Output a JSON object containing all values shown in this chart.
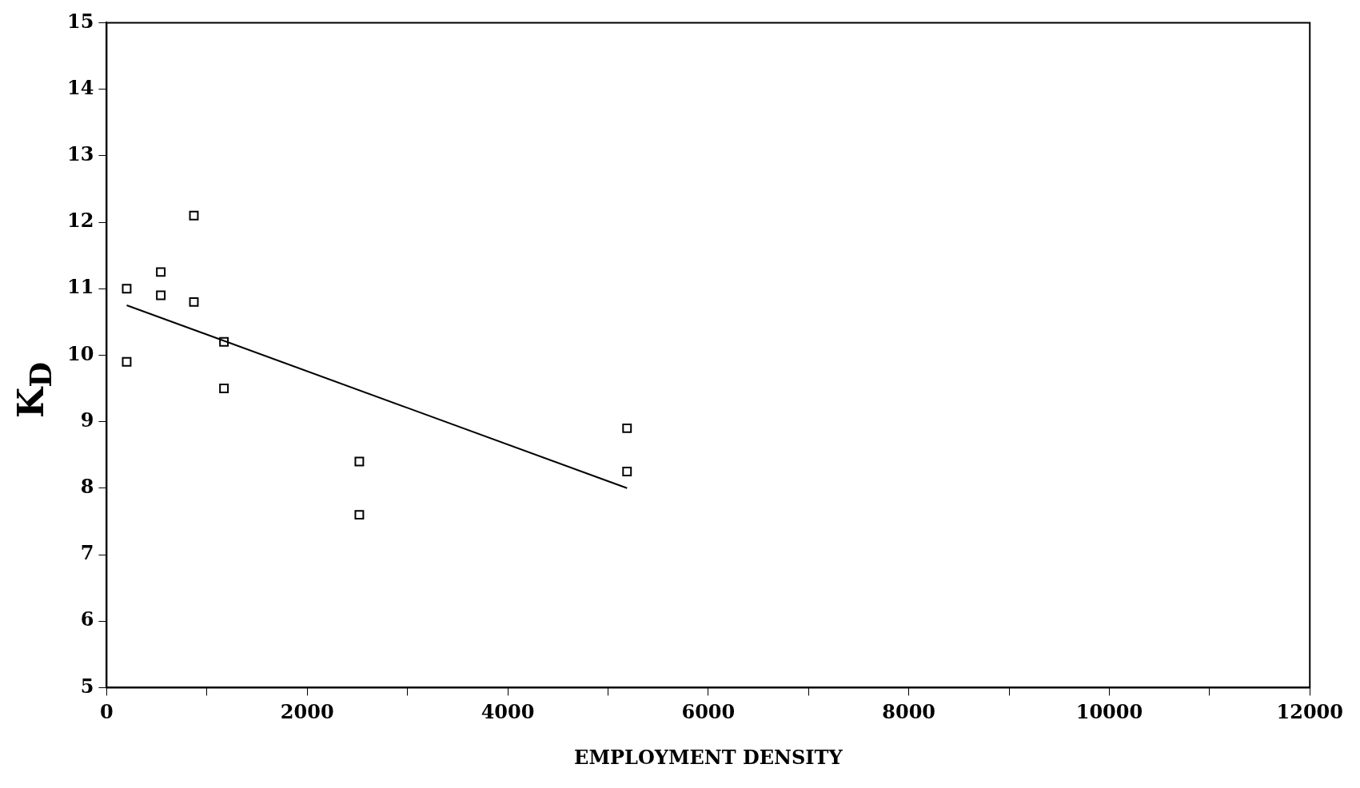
{
  "chart_data": {
    "type": "scatter",
    "xlabel": "EMPLOYMENT DENSITY",
    "ylabel": "K$_{D}$",
    "xlim": [
      0,
      12000
    ],
    "xticks": [
      0,
      {
        "value": 1000,
        "label": null
      },
      2000,
      {
        "value": 3000,
        "label": null
      },
      4000,
      {
        "value": 5000,
        "label": null
      },
      6000,
      {
        "value": 7000,
        "label": null
      },
      8000,
      {
        "value": 9000,
        "label": null
      },
      10000,
      {
        "value": 11000,
        "label": null
      },
      12000
    ],
    "ylim": [
      5,
      15
    ],
    "yticks": [
      5,
      6,
      7,
      8,
      9,
      10,
      11,
      12,
      13,
      14,
      15
    ],
    "grid": false,
    "legend": false,
    "marker": "square",
    "series": [
      {
        "color": "#000000",
        "x": [
          200,
          200,
          540,
          540,
          870,
          870,
          1170,
          1170,
          2520,
          2520,
          5190,
          5190
        ],
        "values": [
          11.0,
          9.9,
          11.25,
          10.9,
          12.1,
          10.8,
          10.2,
          9.5,
          8.4,
          7.6,
          8.9,
          8.25
        ]
      },
      {
        "type": "line",
        "color": "#000000",
        "marker": "none",
        "line_style": "solid",
        "x": [
          200,
          5190
        ],
        "values": [
          10.75,
          8.0
        ]
      }
    ]
  }
}
